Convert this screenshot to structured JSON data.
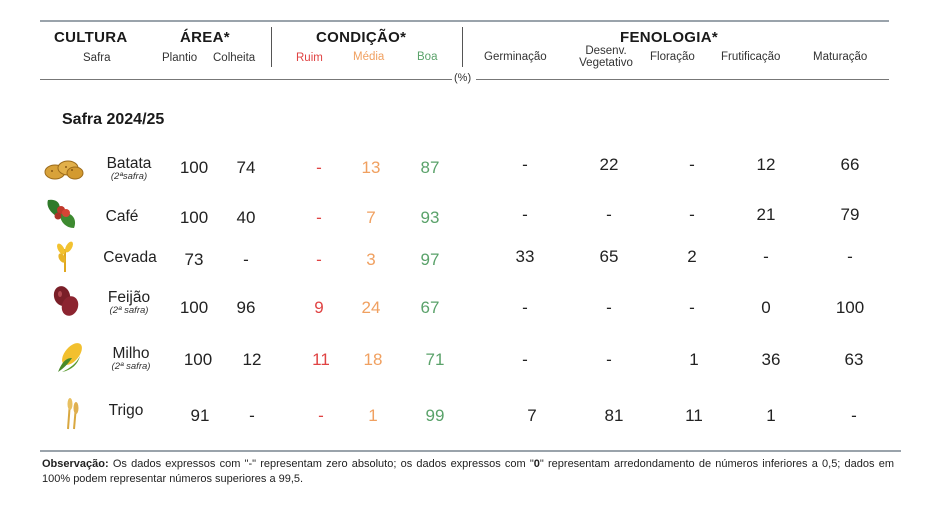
{
  "header": {
    "cultura": "CULTURA",
    "safra": "Safra",
    "area": "ÁREA*",
    "plantio": "Plantio",
    "colheita": "Colheita",
    "condicao": "CONDIÇÃO*",
    "ruim": "Ruim",
    "media": "Média",
    "boa": "Boa",
    "fenologia": "FENOLOGIA*",
    "germinacao": "Germinação",
    "desenv_1": "Desenv.",
    "desenv_2": "Vegetativo",
    "floracao": "Floração",
    "frutificacao": "Frutificação",
    "maturacao": "Maturação",
    "unit": "(%)"
  },
  "section_title": "Safra 2024/25",
  "rows": [
    {
      "name": "Batata",
      "sub": "(2ªsafra)",
      "icon": "potato-icon",
      "plantio": "100",
      "colheita": "74",
      "ruim": "-",
      "media": "13",
      "boa": "87",
      "germ": "-",
      "desenv": "22",
      "flor": "-",
      "frut": "12",
      "mat": "66"
    },
    {
      "name": "Café",
      "sub": "",
      "icon": "coffee-icon",
      "plantio": "100",
      "colheita": "40",
      "ruim": "-",
      "media": "7",
      "boa": "93",
      "germ": "-",
      "desenv": "-",
      "flor": "-",
      "frut": "21",
      "mat": "79"
    },
    {
      "name": "Cevada",
      "sub": "",
      "icon": "barley-icon",
      "plantio": "73",
      "colheita": "-",
      "ruim": "-",
      "media": "3",
      "boa": "97",
      "germ": "33",
      "desenv": "65",
      "flor": "2",
      "frut": "-",
      "mat": "-"
    },
    {
      "name": "Feijão",
      "sub": "(2ª safra)",
      "icon": "bean-icon",
      "plantio": "100",
      "colheita": "96",
      "ruim": "9",
      "media": "24",
      "boa": "67",
      "germ": "-",
      "desenv": "-",
      "flor": "-",
      "frut": "0",
      "mat": "100"
    },
    {
      "name": "Milho",
      "sub": "(2ª safra)",
      "icon": "corn-icon",
      "plantio": "100",
      "colheita": "12",
      "ruim": "11",
      "media": "18",
      "boa": "71",
      "germ": "-",
      "desenv": "-",
      "flor": "1",
      "frut": "36",
      "mat": "63"
    },
    {
      "name": "Trigo",
      "sub": "",
      "icon": "wheat-icon",
      "plantio": "91",
      "colheita": "-",
      "ruim": "-",
      "media": "1",
      "boa": "99",
      "germ": "7",
      "desenv": "81",
      "flor": "11",
      "frut": "1",
      "mat": "-"
    }
  ],
  "note": {
    "label": "Observação:",
    "part1": " Os dados expressos com \"-\" representam zero absoluto; os dados expressos com \"",
    "zero": "0",
    "part2": "\" representam arredondamento de números inferiores a 0,5; dados em 100% podem representar números superiores a 99,5."
  },
  "colors": {
    "ruim": "#e04343",
    "media": "#f0a060",
    "boa": "#5aa26a",
    "rule": "#9aa3ab"
  }
}
